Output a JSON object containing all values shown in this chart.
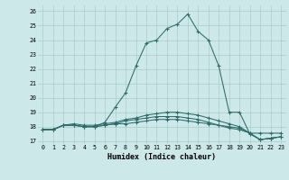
{
  "xlabel": "Humidex (Indice chaleur)",
  "ylabel": "",
  "background_color": "#cde8e8",
  "grid_color": "#aacccc",
  "line_color": "#2e6b6b",
  "xlim": [
    -0.5,
    23.5
  ],
  "ylim": [
    16.8,
    26.4
  ],
  "xticks": [
    0,
    1,
    2,
    3,
    4,
    5,
    6,
    7,
    8,
    9,
    10,
    11,
    12,
    13,
    14,
    15,
    16,
    17,
    18,
    19,
    20,
    21,
    22,
    23
  ],
  "yticks": [
    17,
    18,
    19,
    20,
    21,
    22,
    23,
    24,
    25,
    26
  ],
  "series": [
    {
      "x": [
        0,
        1,
        2,
        3,
        4,
        5,
        6,
        7,
        8,
        9,
        10,
        11,
        12,
        13,
        14,
        15,
        16,
        17,
        18,
        19,
        20,
        21,
        22,
        23
      ],
      "y": [
        17.8,
        17.8,
        18.1,
        18.1,
        18.0,
        18.0,
        18.1,
        18.2,
        18.2,
        18.3,
        18.4,
        18.5,
        18.5,
        18.5,
        18.4,
        18.3,
        18.2,
        18.1,
        18.0,
        17.9,
        17.55,
        17.55,
        17.55,
        17.55
      ]
    },
    {
      "x": [
        0,
        1,
        2,
        3,
        4,
        5,
        6,
        7,
        8,
        9,
        10,
        11,
        12,
        13,
        14,
        15,
        16,
        17,
        18,
        19,
        20,
        21,
        22,
        23
      ],
      "y": [
        17.8,
        17.8,
        18.1,
        18.1,
        18.0,
        18.0,
        18.3,
        19.35,
        20.35,
        22.2,
        23.8,
        24.0,
        24.8,
        25.1,
        25.8,
        24.6,
        24.0,
        22.2,
        19.0,
        19.0,
        17.5,
        17.1,
        17.2,
        17.3
      ]
    },
    {
      "x": [
        0,
        1,
        2,
        3,
        4,
        5,
        6,
        7,
        8,
        9,
        10,
        11,
        12,
        13,
        14,
        15,
        16,
        17,
        18,
        19,
        20,
        21,
        22,
        23
      ],
      "y": [
        17.8,
        17.8,
        18.1,
        18.1,
        18.0,
        18.0,
        18.1,
        18.2,
        18.4,
        18.5,
        18.6,
        18.7,
        18.7,
        18.7,
        18.6,
        18.5,
        18.3,
        18.1,
        17.9,
        17.8,
        17.55,
        17.1,
        17.2,
        17.3
      ]
    },
    {
      "x": [
        0,
        1,
        2,
        3,
        4,
        5,
        6,
        7,
        8,
        9,
        10,
        11,
        12,
        13,
        14,
        15,
        16,
        17,
        18,
        19,
        20,
        21,
        22,
        23
      ],
      "y": [
        17.8,
        17.8,
        18.1,
        18.2,
        18.1,
        18.1,
        18.2,
        18.3,
        18.5,
        18.6,
        18.8,
        18.9,
        19.0,
        19.0,
        18.9,
        18.8,
        18.6,
        18.4,
        18.2,
        18.0,
        17.55,
        17.1,
        17.2,
        17.3
      ]
    }
  ]
}
